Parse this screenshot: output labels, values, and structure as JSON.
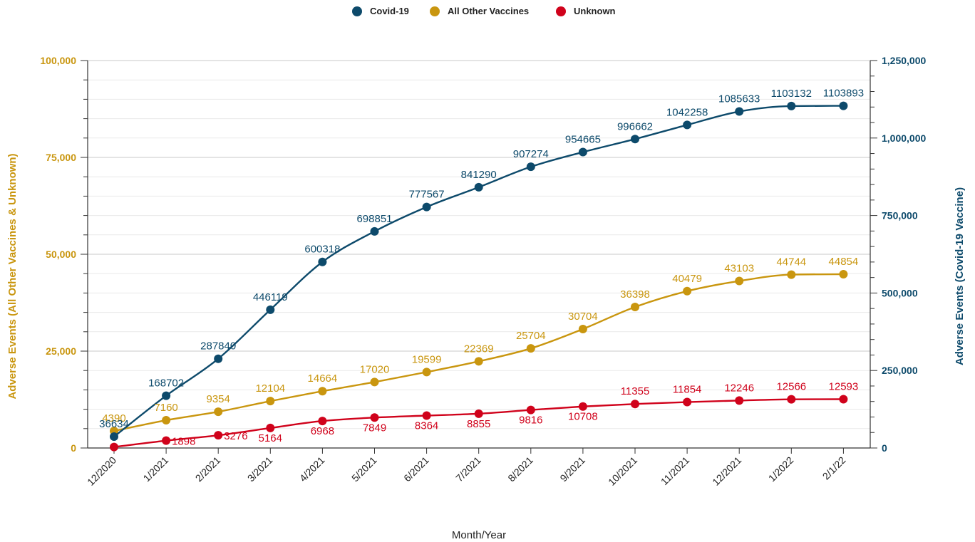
{
  "chart_data": {
    "type": "line",
    "categories": [
      "12/2020",
      "1/2021",
      "2/2021",
      "3/2021",
      "4/2021",
      "5/2021",
      "6/2021",
      "7/2021",
      "8/2021",
      "9/2021",
      "10/2021",
      "11/2021",
      "12/2021",
      "1/2022",
      "2/1/22"
    ],
    "xlabel": "Month/Year",
    "y_left": {
      "label": "Adverse Events (All Other Vaccines & Unknown)",
      "ylim": [
        0,
        100000
      ],
      "ticks": [
        0,
        25000,
        50000,
        75000,
        100000
      ],
      "tick_labels": [
        "0",
        "25,000",
        "50,000",
        "75,000",
        "100,000"
      ],
      "color": "#c9960f"
    },
    "y_right": {
      "label": "Adverse Events (Covid-19 Vaccine)",
      "ylim": [
        0,
        1250000
      ],
      "ticks": [
        0,
        250000,
        500000,
        750000,
        1000000,
        1250000
      ],
      "tick_labels": [
        "0",
        "250,000",
        "500,000",
        "750,000",
        "1,000,000",
        "1,250,000"
      ],
      "color": "#0d4a6b"
    },
    "series": [
      {
        "name": "Covid-19",
        "axis": "right",
        "color": "#0d4a6b",
        "values": [
          36634,
          168702,
          287840,
          446119,
          600318,
          698851,
          777567,
          841290,
          907274,
          954665,
          996662,
          1042258,
          1085633,
          1103132,
          1103893
        ]
      },
      {
        "name": "All Other Vaccines",
        "axis": "left",
        "color": "#c9960f",
        "values": [
          4390,
          7160,
          9354,
          12104,
          14664,
          17020,
          19599,
          22369,
          25704,
          30704,
          36398,
          40479,
          43103,
          44744,
          44854
        ]
      },
      {
        "name": "Unknown",
        "axis": "left",
        "color": "#d0021b",
        "values": [
          250,
          1898,
          3276,
          5164,
          6968,
          7849,
          8364,
          8855,
          9816,
          10708,
          11355,
          11854,
          12246,
          12566,
          12593
        ],
        "labels": [
          "",
          "1898",
          "3276",
          "5164",
          "6968",
          "7849",
          "8364",
          "8855",
          "9816",
          "10708",
          "11355",
          "11854",
          "12246",
          "12566",
          "12593"
        ]
      }
    ],
    "legend_placement": "top-center",
    "grid": true
  }
}
